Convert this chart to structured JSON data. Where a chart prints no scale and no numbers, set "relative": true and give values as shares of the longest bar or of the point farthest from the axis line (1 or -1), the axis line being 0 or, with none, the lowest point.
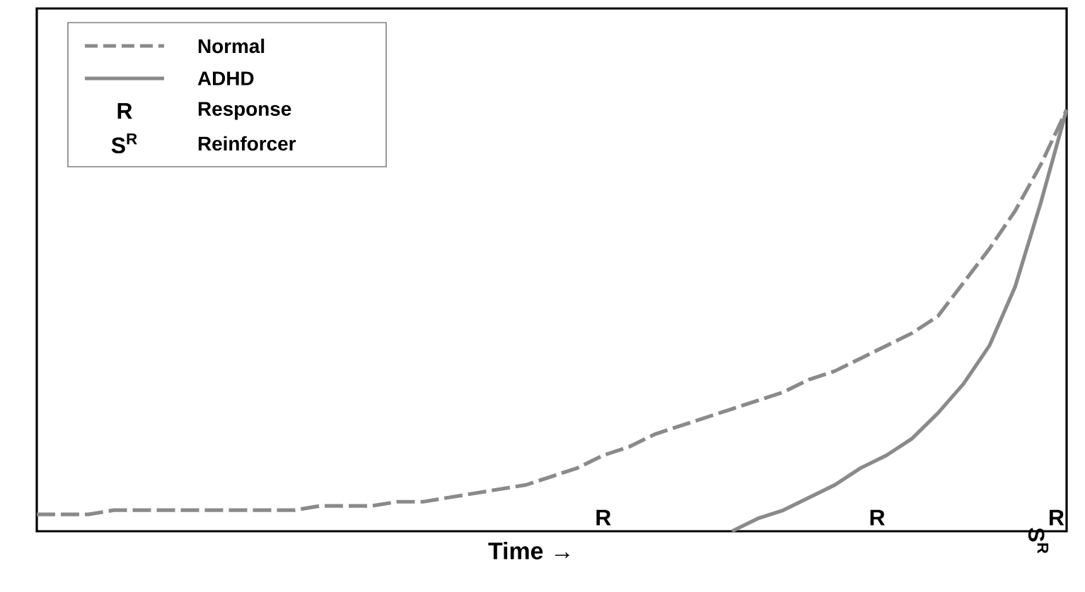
{
  "chart_data": {
    "type": "line",
    "relative": true,
    "xlabel": "Time →",
    "categories": [
      null,
      null,
      null,
      null,
      null,
      null,
      null,
      null,
      null,
      null,
      null,
      null,
      null,
      null,
      null,
      null,
      null,
      null,
      null,
      null,
      null,
      null,
      null,
      null,
      null,
      null,
      null,
      null,
      null,
      null,
      null,
      null,
      null,
      null,
      null,
      null,
      null,
      null,
      null,
      null,
      null
    ],
    "series": [
      {
        "name": "Normal",
        "color": "#8a8a8a",
        "line_style": "dashed",
        "values": [
          0.04,
          0.04,
          0.04,
          0.05,
          0.05,
          0.05,
          0.05,
          0.05,
          0.05,
          0.05,
          0.05,
          0.06,
          0.06,
          0.06,
          0.07,
          0.07,
          0.08,
          0.09,
          0.1,
          0.11,
          0.13,
          0.15,
          0.18,
          0.2,
          0.23,
          0.25,
          0.27,
          0.29,
          0.31,
          0.33,
          0.36,
          0.38,
          0.41,
          0.44,
          0.47,
          0.51,
          0.59,
          0.67,
          0.76,
          0.87,
          1.0
        ]
      },
      {
        "name": "ADHD",
        "color": "#8a8a8a",
        "line_style": "solid",
        "values": [
          null,
          null,
          null,
          null,
          null,
          null,
          null,
          null,
          null,
          null,
          null,
          null,
          null,
          null,
          null,
          null,
          null,
          null,
          null,
          null,
          null,
          null,
          null,
          null,
          null,
          null,
          null,
          0.0,
          0.03,
          0.05,
          0.08,
          0.11,
          0.15,
          0.18,
          0.22,
          0.28,
          0.35,
          0.44,
          0.58,
          0.78,
          1.0
        ]
      }
    ],
    "annotations": [
      "R",
      "Response",
      "S$^{R}$",
      "Reinforcer",
      "R",
      "R",
      "R",
      "S$^{R}$"
    ],
    "legend": "top left"
  }
}
